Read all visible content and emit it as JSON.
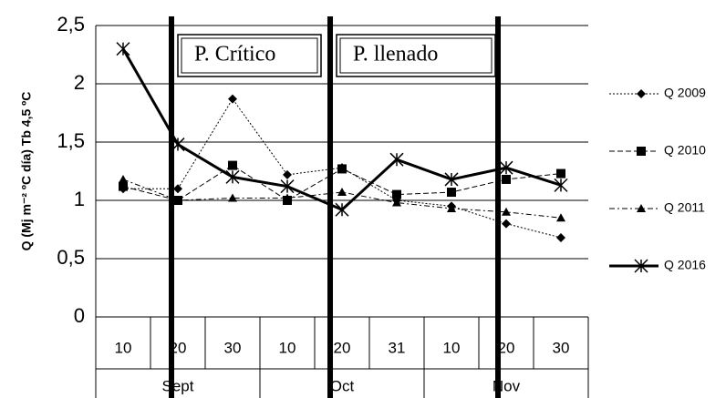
{
  "chart_data": {
    "type": "line",
    "y_label": "Q (Mj m⁻² ºC día) Tb 4,5 ºC",
    "categories": [
      "10",
      "20",
      "30",
      "10",
      "20",
      "31",
      "10",
      "20",
      "30"
    ],
    "groups": [
      "Sept",
      "Oct",
      "Nov"
    ],
    "annotations": [
      "P. Crítico",
      "P. llenado"
    ],
    "ylim": [
      0,
      2.5
    ],
    "yticks": [
      {
        "value": 0,
        "label": "0"
      },
      {
        "value": 0.5,
        "label": "0,5"
      },
      1,
      {
        "value": 1.5,
        "label": "1,5"
      },
      2,
      {
        "value": 2.5,
        "label": "2,5"
      }
    ],
    "grid": true,
    "legend": "right",
    "series": [
      {
        "name": "Q 2009",
        "color": "#000000",
        "marker": "diamond",
        "dash": "2,2",
        "width": 1,
        "values": [
          1.1,
          1.1,
          1.87,
          1.22,
          1.28,
          1.0,
          0.95,
          0.8,
          0.68
        ]
      },
      {
        "name": "Q 2010",
        "color": "#000000",
        "marker": "square",
        "dash": "6,3",
        "width": 1,
        "values": [
          1.12,
          1.0,
          1.3,
          1.0,
          1.27,
          1.05,
          1.07,
          1.18,
          1.23
        ]
      },
      {
        "name": "Q 2011",
        "color": "#000000",
        "marker": "triangle",
        "dash": "6,3,2,3",
        "width": 1,
        "values": [
          1.18,
          1.0,
          1.02,
          1.02,
          1.07,
          0.98,
          0.93,
          0.9,
          0.85
        ]
      },
      {
        "name": "Q 2016",
        "color": "#000000",
        "marker": "star",
        "dash": "none",
        "width": 3,
        "values": [
          2.3,
          1.48,
          1.2,
          1.12,
          0.92,
          1.35,
          1.18,
          1.28,
          1.13
        ]
      }
    ]
  }
}
